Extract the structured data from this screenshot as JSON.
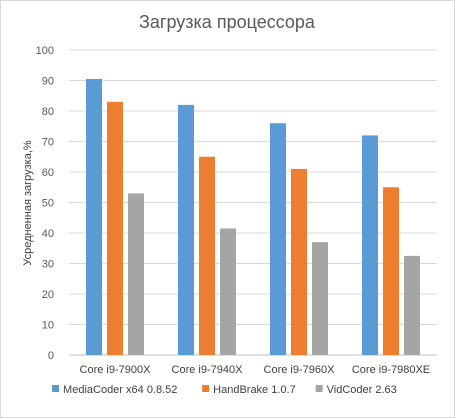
{
  "chart_data": {
    "type": "bar",
    "title": "Загрузка процессора",
    "ylabel": "Усредненная загрузка,%",
    "xlabel": "",
    "ylim": [
      0,
      100
    ],
    "ytick_step": 10,
    "grid": true,
    "legend_position": "bottom",
    "categories": [
      "Core i9-7900X",
      "Core i9-7940X",
      "Core i9-7960X",
      "Core i9-7980XE"
    ],
    "series": [
      {
        "name": "MediaCoder x64 0.8.52",
        "color": "#5b9bd5",
        "values": [
          90.5,
          82,
          76,
          72
        ]
      },
      {
        "name": "HandBrake 1.0.7",
        "color": "#ed7d31",
        "values": [
          83,
          65,
          61,
          55
        ]
      },
      {
        "name": "VidCoder 2.63",
        "color": "#a5a5a5",
        "values": [
          53,
          41.5,
          37,
          32.5
        ]
      }
    ]
  }
}
